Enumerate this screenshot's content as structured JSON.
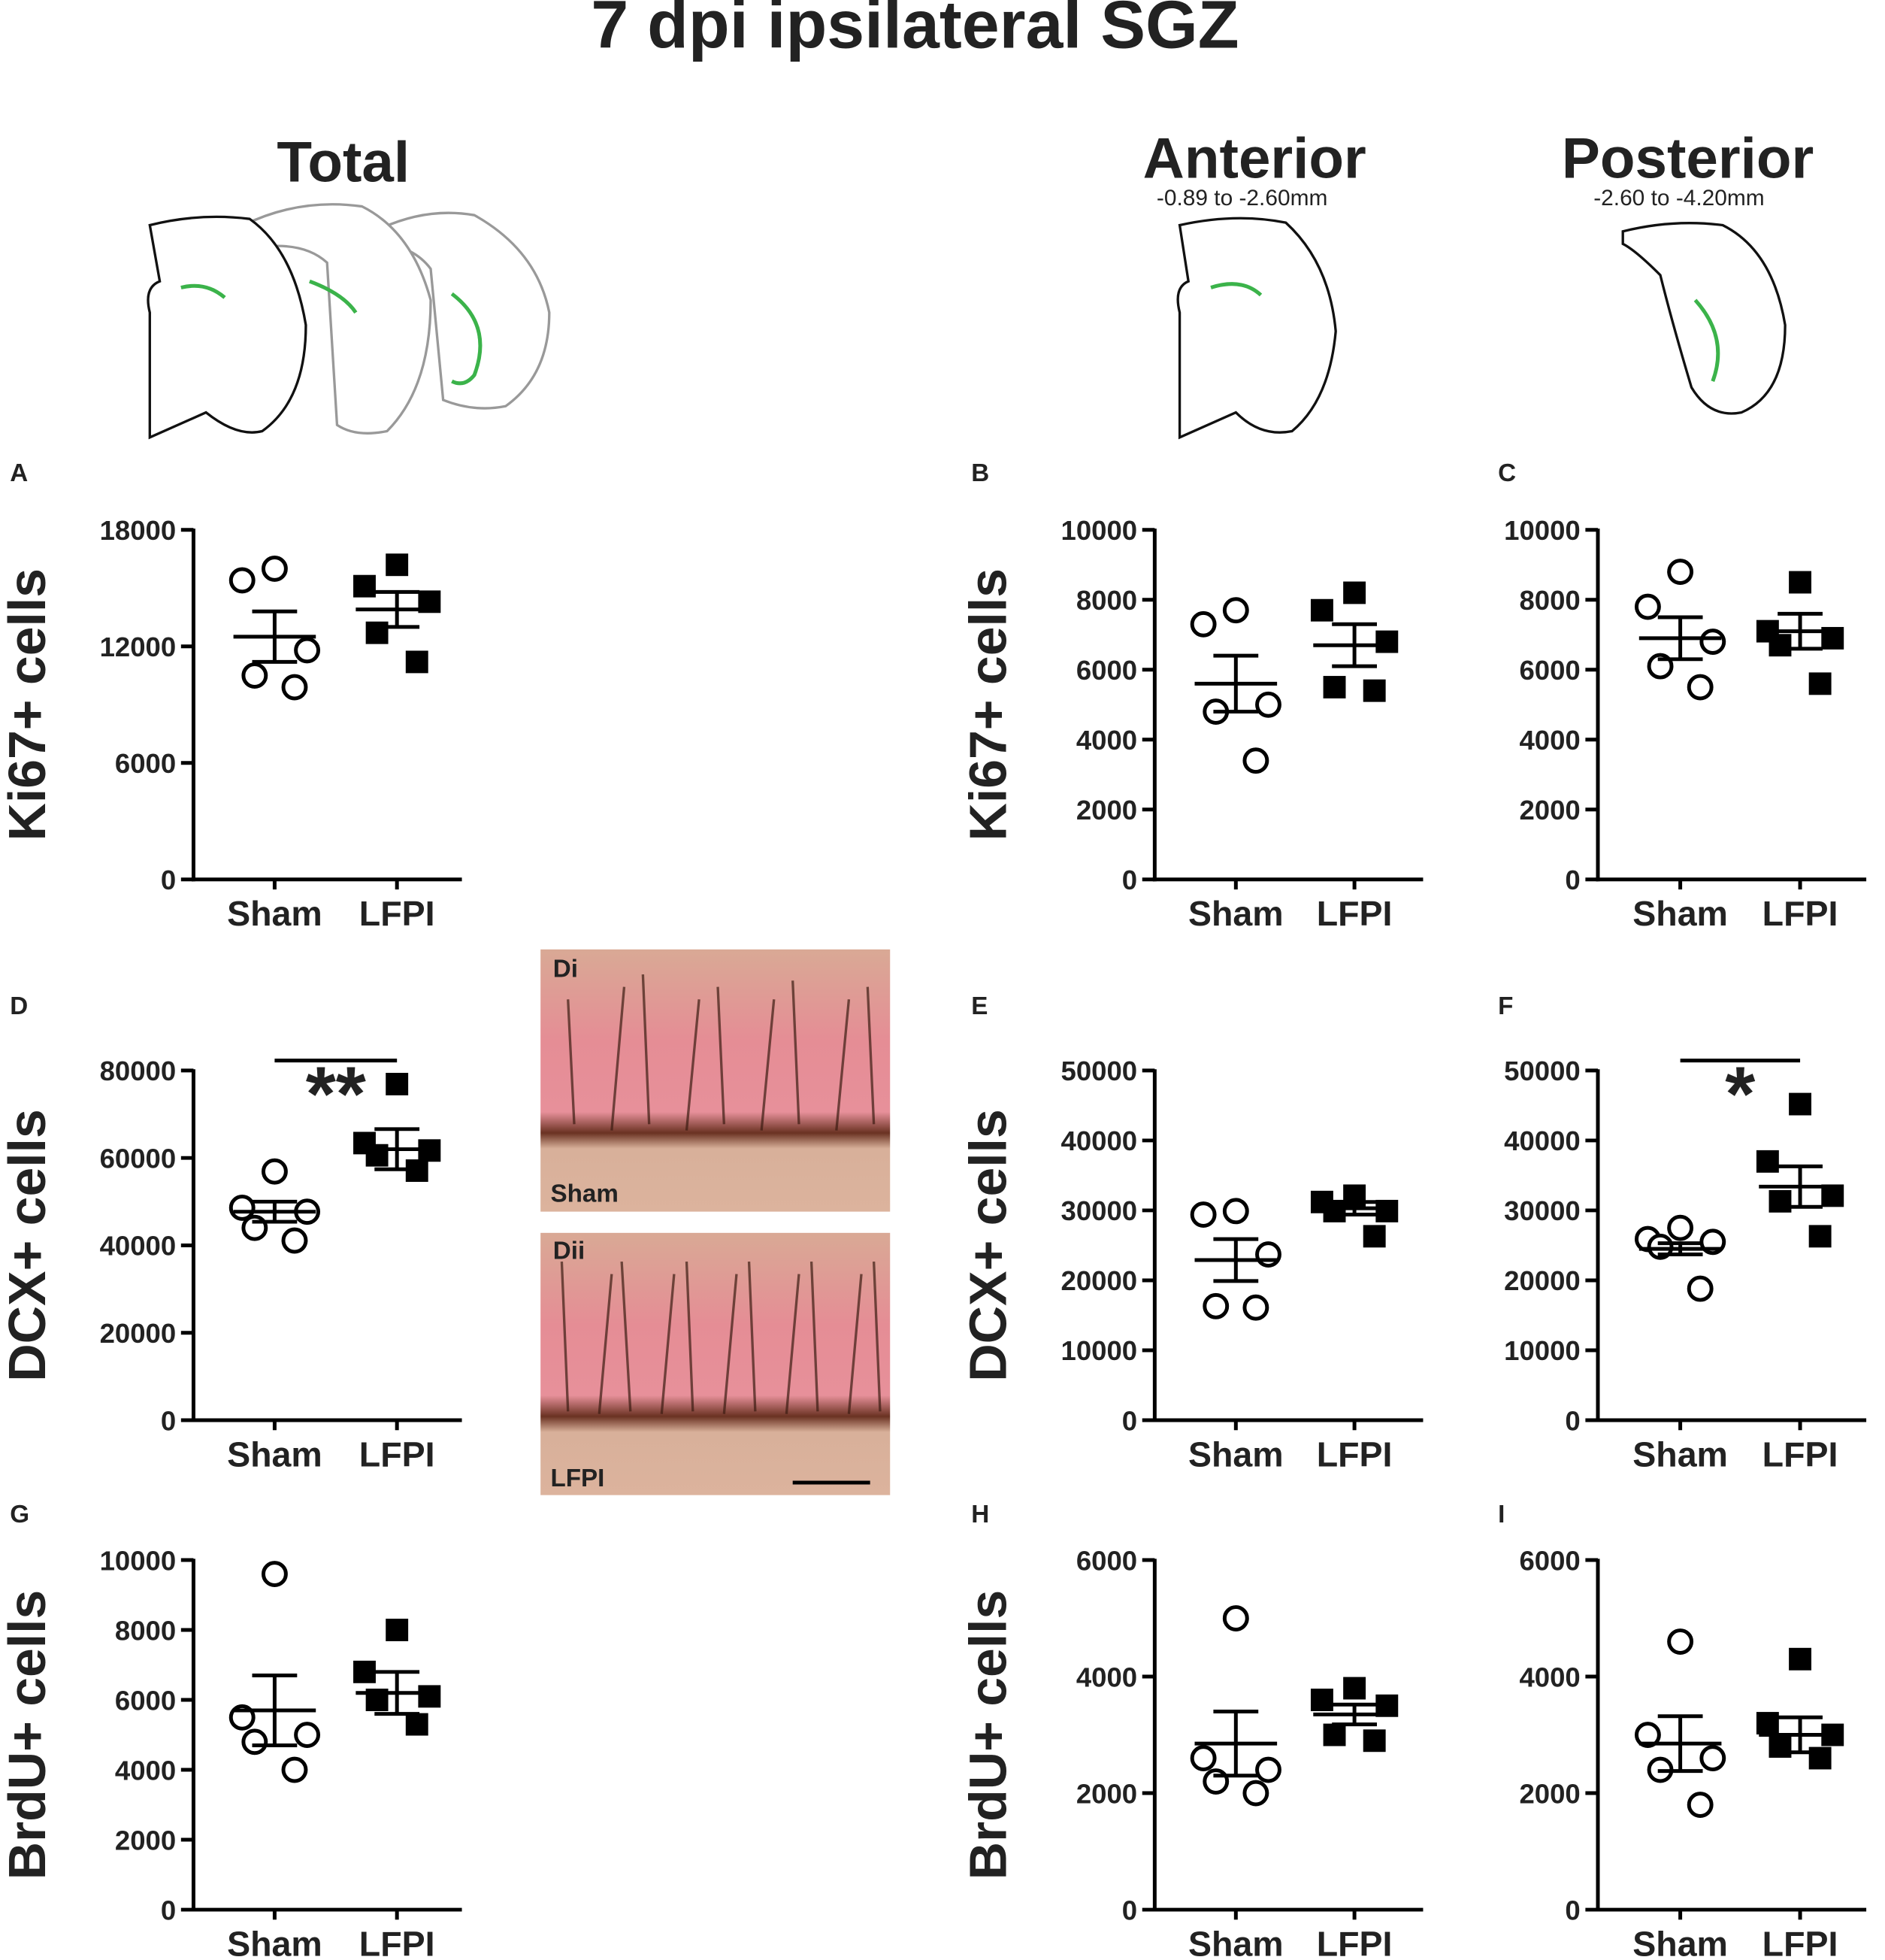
{
  "title": "7 dpi ipsilateral SGZ",
  "column_headers": [
    {
      "title": "Total"
    },
    {
      "title": "Anterior",
      "range": "-0.89 to -2.60mm"
    },
    {
      "title": "Posterior",
      "range": "-2.60 to -4.20mm"
    }
  ],
  "micrographs": [
    {
      "panel": "Di",
      "label": "Sham"
    },
    {
      "panel": "Dii",
      "label": "LFPI"
    }
  ],
  "chart_data": [
    {
      "type": "dot",
      "panel": "A",
      "ylabel": "Ki67+ cells",
      "categories": [
        "Sham",
        "LFPI"
      ],
      "markers": [
        "open-circle",
        "filled-square"
      ],
      "ylim": [
        0,
        18000
      ],
      "yticks": [
        0,
        6000,
        12000,
        18000
      ],
      "points": [
        [
          16000,
          15400,
          11800,
          10500,
          9900
        ],
        [
          16200,
          15100,
          14300,
          12700,
          11200
        ]
      ],
      "means": [
        12500,
        13900
      ],
      "sems": [
        1300,
        900
      ]
    },
    {
      "type": "dot",
      "panel": "B",
      "ylabel": "Ki67+ cells",
      "categories": [
        "Sham",
        "LFPI"
      ],
      "markers": [
        "open-circle",
        "filled-square"
      ],
      "ylim": [
        0,
        10000
      ],
      "yticks": [
        0,
        2000,
        4000,
        6000,
        8000,
        10000
      ],
      "points": [
        [
          7700,
          7300,
          5000,
          4800,
          3400
        ],
        [
          8200,
          7700,
          6800,
          5500,
          5400
        ]
      ],
      "means": [
        5600,
        6700
      ],
      "sems": [
        800,
        600
      ]
    },
    {
      "type": "dot",
      "panel": "C",
      "categories": [
        "Sham",
        "LFPI"
      ],
      "markers": [
        "open-circle",
        "filled-square"
      ],
      "ylim": [
        0,
        10000
      ],
      "yticks": [
        0,
        2000,
        4000,
        6000,
        8000,
        10000
      ],
      "points": [
        [
          8800,
          7800,
          6800,
          6100,
          5500
        ],
        [
          8500,
          7100,
          6900,
          6700,
          5600
        ]
      ],
      "means": [
        6900,
        7100
      ],
      "sems": [
        600,
        500
      ]
    },
    {
      "type": "dot",
      "panel": "D",
      "ylabel": "DCX+ cells",
      "categories": [
        "Sham",
        "LFPI"
      ],
      "markers": [
        "open-circle",
        "filled-square"
      ],
      "ylim": [
        0,
        80000
      ],
      "yticks": [
        0,
        20000,
        40000,
        60000,
        80000
      ],
      "points": [
        [
          56900,
          48600,
          47700,
          44000,
          41100
        ],
        [
          76900,
          63400,
          61700,
          60600,
          57100
        ]
      ],
      "means": [
        47700,
        62000
      ],
      "sems": [
        2300,
        4600
      ],
      "significance": "**"
    },
    {
      "type": "dot",
      "panel": "E",
      "ylabel": "DCX+ cells",
      "categories": [
        "Sham",
        "LFPI"
      ],
      "markers": [
        "open-circle",
        "filled-square"
      ],
      "ylim": [
        0,
        50000
      ],
      "yticks": [
        0,
        10000,
        20000,
        30000,
        40000,
        50000
      ],
      "points": [
        [
          29900,
          29400,
          23700,
          16300,
          16100
        ],
        [
          32100,
          31200,
          29900,
          29900,
          26300
        ]
      ],
      "means": [
        22900,
        30300
      ],
      "sems": [
        3000,
        900
      ]
    },
    {
      "type": "dot",
      "panel": "F",
      "categories": [
        "Sham",
        "LFPI"
      ],
      "markers": [
        "open-circle",
        "filled-square"
      ],
      "ylim": [
        0,
        50000
      ],
      "yticks": [
        0,
        10000,
        20000,
        30000,
        40000,
        50000
      ],
      "points": [
        [
          27500,
          25900,
          25500,
          24800,
          18800
        ],
        [
          45200,
          37000,
          32100,
          31300,
          26300
        ]
      ],
      "means": [
        24500,
        33400
      ],
      "sems": [
        800,
        2900
      ],
      "significance": "*"
    },
    {
      "type": "dot",
      "panel": "G",
      "ylabel": "BrdU+ cells",
      "categories": [
        "Sham",
        "LFPI"
      ],
      "markers": [
        "open-circle",
        "filled-square"
      ],
      "ylim": [
        0,
        10000
      ],
      "yticks": [
        0,
        2000,
        4000,
        6000,
        8000,
        10000
      ],
      "points": [
        [
          9600,
          5500,
          5000,
          4800,
          4000
        ],
        [
          8000,
          6800,
          6100,
          6000,
          5300
        ]
      ],
      "means": [
        5700,
        6200
      ],
      "sems": [
        1000,
        600
      ]
    },
    {
      "type": "dot",
      "panel": "H",
      "ylabel": "BrdU+ cells",
      "categories": [
        "Sham",
        "LFPI"
      ],
      "markers": [
        "open-circle",
        "filled-square"
      ],
      "ylim": [
        0,
        6000
      ],
      "yticks": [
        0,
        2000,
        4000,
        6000
      ],
      "points": [
        [
          5000,
          2600,
          2400,
          2200,
          2000
        ],
        [
          3800,
          3600,
          3500,
          3000,
          2900
        ]
      ],
      "means": [
        2850,
        3350
      ],
      "sems": [
        550,
        170
      ]
    },
    {
      "type": "dot",
      "panel": "I",
      "categories": [
        "Sham",
        "LFPI"
      ],
      "markers": [
        "open-circle",
        "filled-square"
      ],
      "ylim": [
        0,
        6000
      ],
      "yticks": [
        0,
        2000,
        4000,
        6000
      ],
      "points": [
        [
          4600,
          3000,
          2600,
          2400,
          1800
        ],
        [
          4300,
          3200,
          3000,
          2800,
          2600
        ]
      ],
      "means": [
        2850,
        3000
      ],
      "sems": [
        470,
        300
      ]
    }
  ]
}
